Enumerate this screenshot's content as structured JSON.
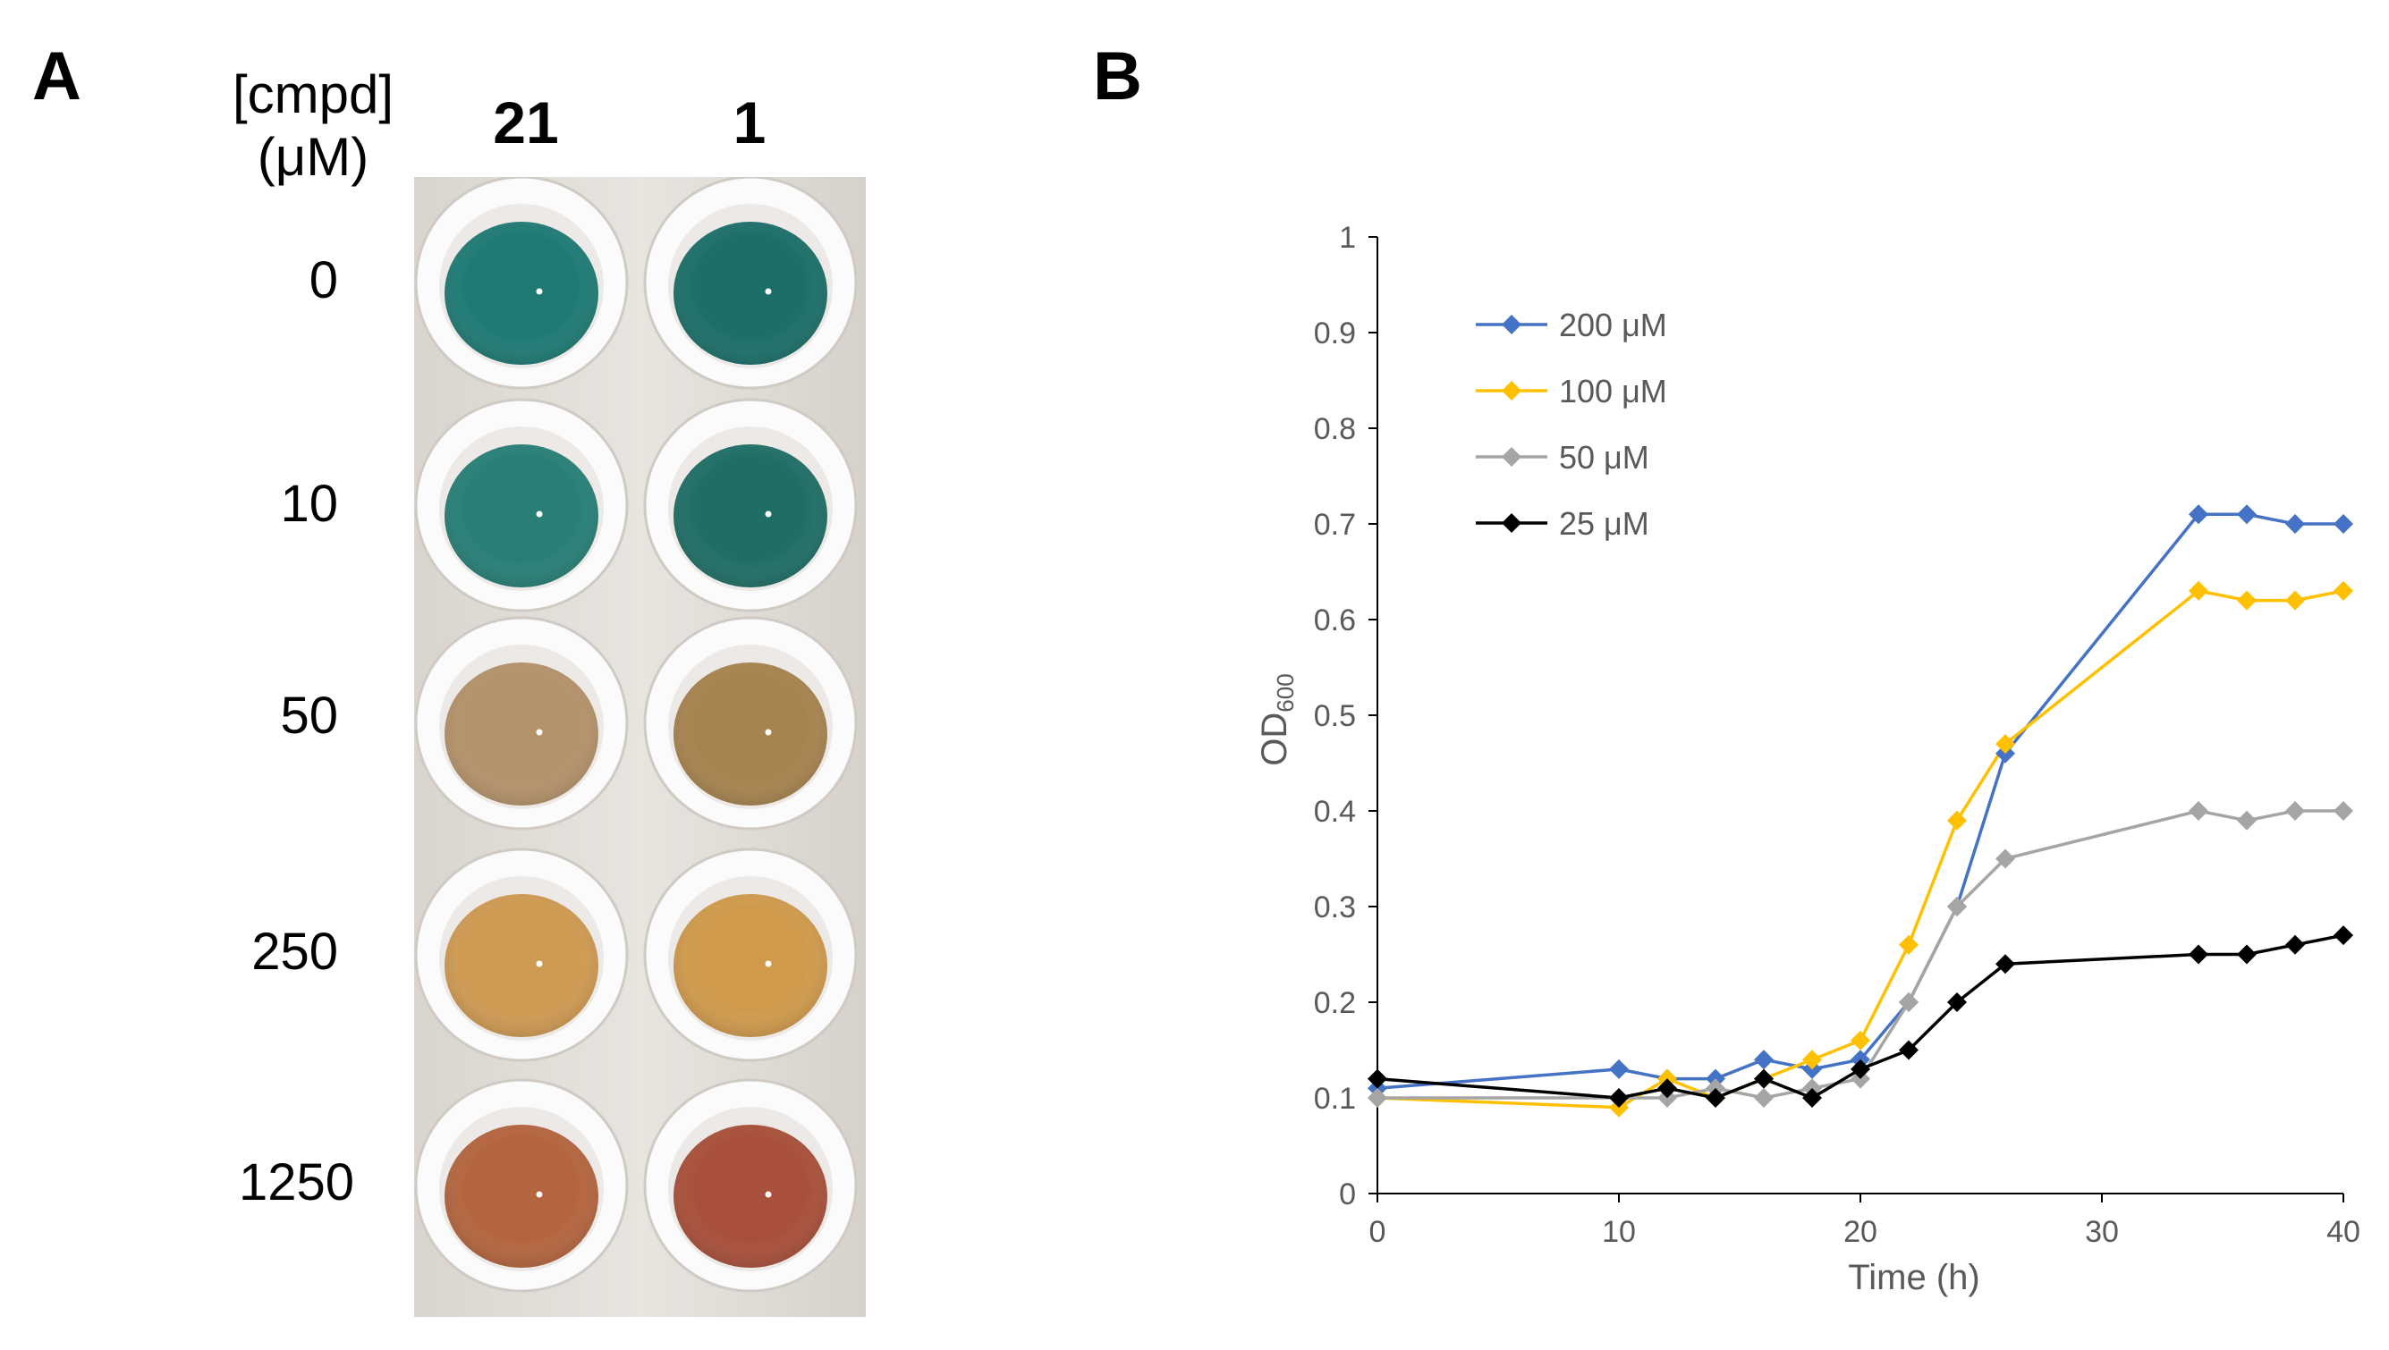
{
  "panel_a": {
    "letter": "A",
    "header_line1": "[cmpd]",
    "header_line2": "(μM)",
    "columns": [
      "21",
      "1"
    ],
    "rows": [
      "0",
      "10",
      "50",
      "250",
      "1250"
    ],
    "well_colors": [
      [
        "#1f7a74",
        "#1c6f69"
      ],
      [
        "#277f76",
        "#1f6e66"
      ],
      [
        "#b4926a",
        "#a7834f"
      ],
      [
        "#cf9a52",
        "#d09a4c"
      ],
      [
        "#b4653f",
        "#a8503a"
      ]
    ]
  },
  "panel_b": {
    "letter": "B"
  },
  "chart_data": {
    "type": "line",
    "xlabel": "Time (h)",
    "ylabel_main": "OD",
    "ylabel_sub": "600",
    "xlim": [
      0,
      40
    ],
    "ylim": [
      0,
      1
    ],
    "xticks": [
      "0",
      "10",
      "20",
      "30",
      "40"
    ],
    "yticks": [
      "0",
      "0.1",
      "0.2",
      "0.3",
      "0.4",
      "0.5",
      "0.6",
      "0.7",
      "0.8",
      "0.9",
      "1"
    ],
    "grid": false,
    "legend_position": "top-left",
    "marker": "diamond",
    "series": [
      {
        "name": "200 μM",
        "color": "#4472c4",
        "x": [
          0,
          10,
          12,
          14,
          16,
          18,
          20,
          22,
          24,
          26,
          34,
          36,
          38,
          40
        ],
        "y": [
          0.11,
          0.13,
          0.12,
          0.12,
          0.14,
          0.13,
          0.14,
          0.2,
          0.3,
          0.46,
          0.71,
          0.71,
          0.7,
          0.7
        ]
      },
      {
        "name": "100 μM",
        "color": "#ffc000",
        "x": [
          0,
          10,
          12,
          14,
          16,
          18,
          20,
          22,
          24,
          26,
          34,
          36,
          38,
          40
        ],
        "y": [
          0.1,
          0.09,
          0.12,
          0.1,
          0.12,
          0.14,
          0.16,
          0.26,
          0.39,
          0.47,
          0.63,
          0.62,
          0.62,
          0.63
        ]
      },
      {
        "name": "50 μM",
        "color": "#a5a5a5",
        "x": [
          0,
          10,
          12,
          14,
          16,
          18,
          20,
          22,
          24,
          26,
          34,
          36,
          38,
          40
        ],
        "y": [
          0.1,
          0.1,
          0.1,
          0.11,
          0.1,
          0.11,
          0.12,
          0.2,
          0.3,
          0.35,
          0.4,
          0.39,
          0.4,
          0.4
        ]
      },
      {
        "name": "25 μM",
        "color": "#000000",
        "x": [
          0,
          10,
          12,
          14,
          16,
          18,
          20,
          22,
          24,
          26,
          34,
          36,
          38,
          40
        ],
        "y": [
          0.12,
          0.1,
          0.11,
          0.1,
          0.12,
          0.1,
          0.13,
          0.15,
          0.2,
          0.24,
          0.25,
          0.25,
          0.26,
          0.27
        ]
      }
    ]
  }
}
